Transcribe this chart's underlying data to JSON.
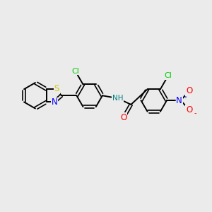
{
  "background_color": "#ebebeb",
  "bond_color": "#000000",
  "S_color": "#cccc00",
  "N_color": "#0000ff",
  "O_color": "#ff0000",
  "Cl_color": "#00cc00",
  "NH_color": "#008080",
  "figsize": [
    3.0,
    3.0
  ],
  "dpi": 100,
  "xlim": [
    0,
    10
  ],
  "ylim": [
    0,
    10
  ],
  "lw": 1.4,
  "r": 0.62
}
